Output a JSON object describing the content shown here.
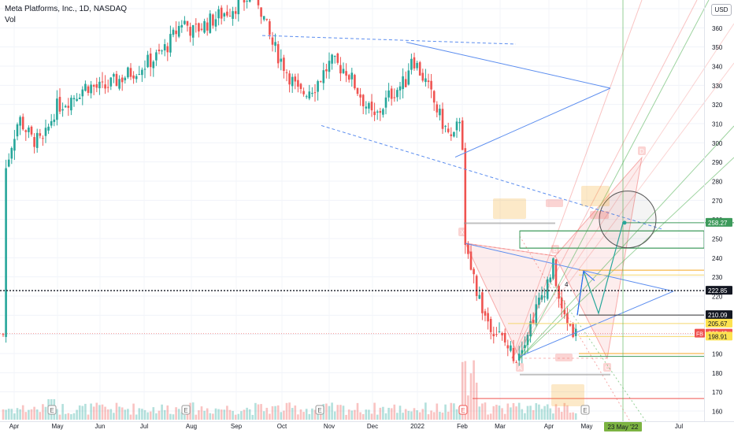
{
  "header": {
    "title": "Meta Platforms, Inc., 1D, NASDAQ",
    "volume_label": "Vol",
    "currency": "USD"
  },
  "price_tags": {
    "target": "258.27",
    "crosshair": "222.85",
    "level_210": "210.09",
    "level_205": "205.67",
    "last": "200.42",
    "last_symbol": "FB",
    "level_198": "198.91"
  },
  "date_badge": "23 May '22",
  "pattern_labels": {
    "X": "X",
    "A": "A",
    "B": "B",
    "C": "C",
    "D": "D",
    "four": "4"
  },
  "event_marker": "E",
  "colors": {
    "up": "#26a69a",
    "down": "#ef5350",
    "pattern_line": "#5b8def",
    "target_tag": "#3d9a5b",
    "last_tag": "#ef5350"
  },
  "chart_data": {
    "type": "candlestick",
    "symbol": "FB",
    "y_axis": {
      "ticks": [
        160,
        170,
        180,
        190,
        200,
        210,
        220,
        230,
        240,
        250,
        260,
        270,
        280,
        290,
        300,
        310,
        320,
        330,
        340,
        350,
        360,
        370
      ],
      "ylim": [
        156,
        375
      ]
    },
    "x_axis": {
      "ticks": [
        "Apr",
        "May",
        "Jun",
        "Jul",
        "Aug",
        "Sep",
        "Oct",
        "Nov",
        "Dec",
        "2022",
        "Feb",
        "Mar",
        "Apr",
        "May",
        "Jul"
      ]
    },
    "close_path": [
      [
        "Apr",
        282
      ],
      [
        "Apr",
        300
      ],
      [
        "Apr",
        313
      ],
      [
        "May",
        302
      ],
      [
        "May",
        300
      ],
      [
        "May",
        318
      ],
      [
        "May",
        324
      ],
      [
        "Jun",
        330
      ],
      [
        "Jun",
        328
      ],
      [
        "Jun",
        334
      ],
      [
        "Jun",
        340
      ],
      [
        "Jul",
        345
      ],
      [
        "Jul",
        352
      ],
      [
        "Jul",
        364
      ],
      [
        "Aug",
        358
      ],
      [
        "Aug",
        363
      ],
      [
        "Aug",
        368
      ],
      [
        "Sep",
        373
      ],
      [
        "Sep",
        378
      ],
      [
        "Oct",
        352
      ],
      [
        "Oct",
        337
      ],
      [
        "Oct",
        325
      ],
      [
        "Nov",
        330
      ],
      [
        "Nov",
        342
      ],
      [
        "Nov",
        338
      ],
      [
        "Dec",
        312
      ],
      [
        "Dec",
        325
      ],
      [
        "Dec",
        332
      ],
      [
        "2022",
        346
      ],
      [
        "2022",
        332
      ],
      [
        "2022",
        312
      ],
      [
        "2022",
        300
      ],
      [
        "Feb",
        317
      ],
      [
        "Feb",
        244
      ],
      [
        "Feb",
        210
      ],
      [
        "Mar",
        196
      ],
      [
        "Mar",
        188
      ],
      [
        "Mar",
        204
      ],
      [
        "Apr",
        236
      ],
      [
        "Apr",
        212
      ],
      [
        "Apr",
        200
      ]
    ],
    "volume": "daily volume bars along the bottom, spike at early February"
  }
}
